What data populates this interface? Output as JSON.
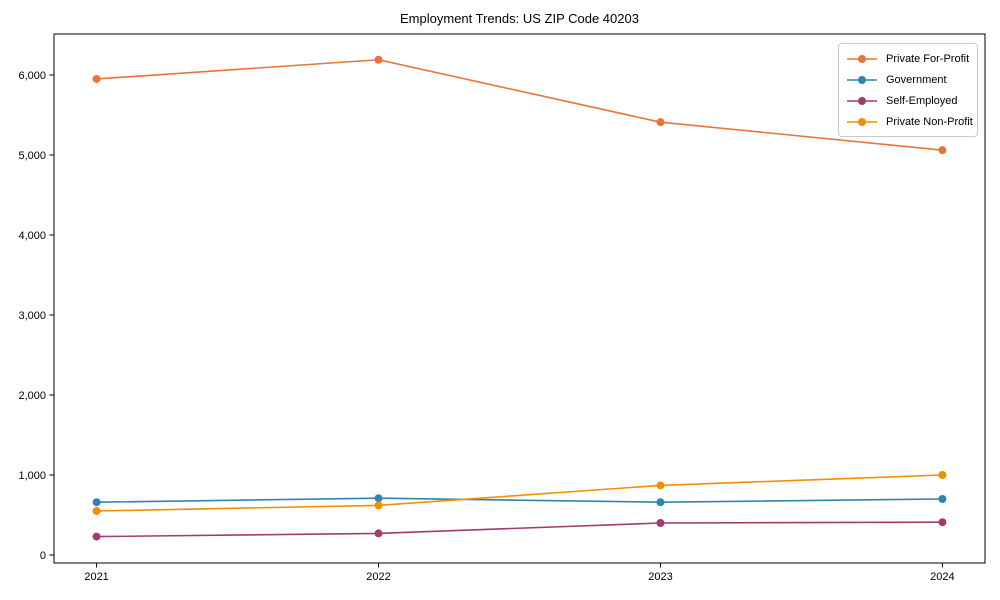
{
  "figure": {
    "background": "#ffffff",
    "axes_frame_color": "#000000",
    "tick_color": "#000000",
    "legend_border_color": "#c9c9c9"
  },
  "chart_data": {
    "type": "line",
    "title": "Employment Trends: US ZIP Code 40203",
    "xlabel": "",
    "ylabel": "",
    "x": [
      "2021",
      "2022",
      "2023",
      "2024"
    ],
    "series": [
      {
        "name": "Private For-Profit",
        "color": "#E8743B",
        "values": [
          5950,
          6190,
          5410,
          5060
        ]
      },
      {
        "name": "Government",
        "color": "#2E86AB",
        "values": [
          660,
          710,
          660,
          700
        ]
      },
      {
        "name": "Self-Employed",
        "color": "#A23B72",
        "values": [
          230,
          270,
          400,
          410
        ]
      },
      {
        "name": "Private Non-Profit",
        "color": "#F18F01",
        "values": [
          550,
          620,
          870,
          1000
        ]
      }
    ],
    "yticks": [
      0,
      1000,
      2000,
      3000,
      4000,
      5000,
      6000
    ],
    "ytick_labels": [
      "0",
      "1,000",
      "2,000",
      "3,000",
      "4,000",
      "5,000",
      "6,000"
    ],
    "ylim": [
      -100,
      6512
    ],
    "xlim": [
      -0.151,
      3.151
    ],
    "grid": false,
    "legend_position": "upper right",
    "marker": "circle"
  }
}
